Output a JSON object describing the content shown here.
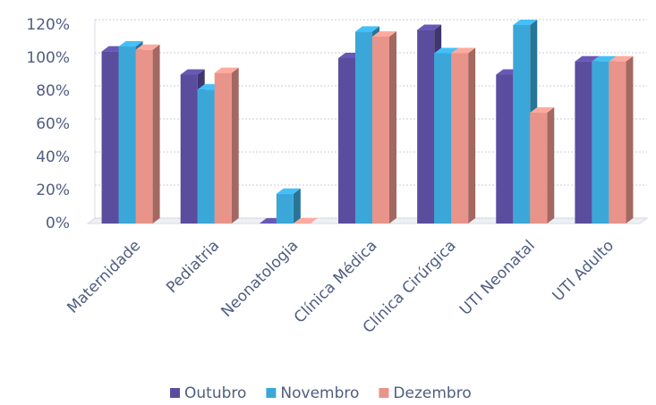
{
  "chart_data": {
    "type": "bar3d",
    "categories": [
      "Maternidade",
      "Pediatria",
      "Neonatologia",
      "Clínica Médica",
      "Clínica Cirúrgica",
      "UTI Neonatal",
      "UTI Adulto"
    ],
    "series": [
      {
        "name": "Outubro",
        "color": "#5b4d9e",
        "values": [
          104,
          90,
          0,
          100,
          117,
          90,
          98
        ]
      },
      {
        "name": "Novembro",
        "color": "#3ba7d8",
        "values": [
          107,
          81,
          18,
          116,
          103,
          120,
          98
        ]
      },
      {
        "name": "Dezembro",
        "color": "#e8948a",
        "values": [
          105,
          91,
          0,
          113,
          103,
          67,
          98
        ]
      }
    ],
    "ylim": [
      0,
      120
    ],
    "yticks": [
      {
        "value": 0,
        "label": "0%"
      },
      {
        "value": 20,
        "label": "20%"
      },
      {
        "value": 40,
        "label": "40%"
      },
      {
        "value": 60,
        "label": "60%"
      },
      {
        "value": 80,
        "label": "80%"
      },
      {
        "value": 100,
        "label": "100%"
      },
      {
        "value": 120,
        "label": "120%"
      }
    ],
    "grid": true,
    "legend": "bottom"
  }
}
